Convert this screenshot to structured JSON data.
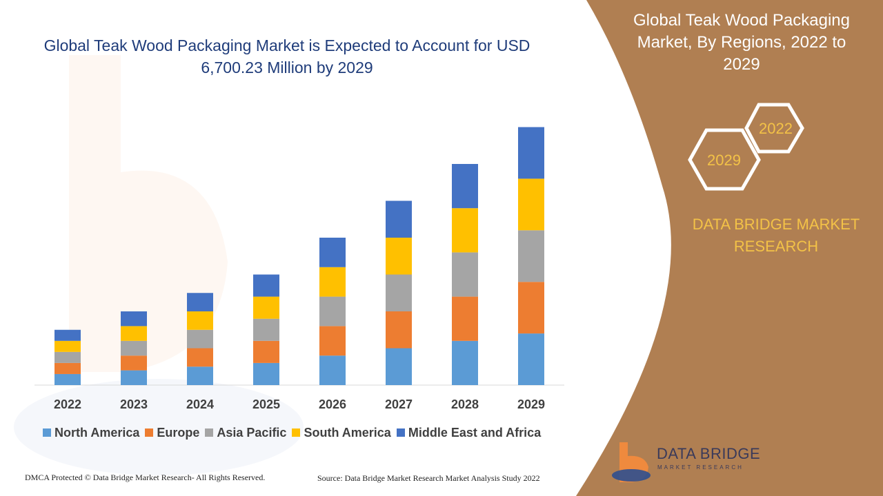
{
  "title": "Global Teak Wood Packaging Market is Expected to Account for USD 6,700.23 Million by 2029",
  "right_panel": {
    "title": "Global Teak Wood Packaging Market, By Regions, 2022 to 2029",
    "hex_front": "2029",
    "hex_back": "2022",
    "brand": "DATA BRIDGE MARKET RESEARCH",
    "logo_name": "DATA BRIDGE",
    "logo_tagline": "MARKET RESEARCH",
    "background_color": "#b07f52"
  },
  "footer": {
    "left": "DMCA Protected © Data Bridge Market Research- All Rights Reserved.",
    "right": "Source: Data Bridge Market Research Market Analysis Study 2022"
  },
  "chart_data": {
    "type": "bar",
    "stacked": true,
    "categories": [
      "2022",
      "2023",
      "2024",
      "2025",
      "2026",
      "2027",
      "2028",
      "2029"
    ],
    "series": [
      {
        "name": "North America",
        "color": "#5b9bd5",
        "values": [
          15,
          20,
          25,
          30,
          40,
          50,
          60,
          70
        ]
      },
      {
        "name": "Europe",
        "color": "#ed7d31",
        "values": [
          15,
          20,
          25,
          30,
          40,
          50,
          60,
          70
        ]
      },
      {
        "name": "Asia Pacific",
        "color": "#a5a5a5",
        "values": [
          15,
          20,
          25,
          30,
          40,
          50,
          60,
          70
        ]
      },
      {
        "name": "South America",
        "color": "#ffc000",
        "values": [
          15,
          20,
          25,
          30,
          40,
          50,
          60,
          70
        ]
      },
      {
        "name": "Middle East and Africa",
        "color": "#4472c4",
        "values": [
          15,
          20,
          25,
          30,
          40,
          50,
          60,
          70
        ]
      }
    ],
    "legend_position": "bottom",
    "grid": false
  }
}
